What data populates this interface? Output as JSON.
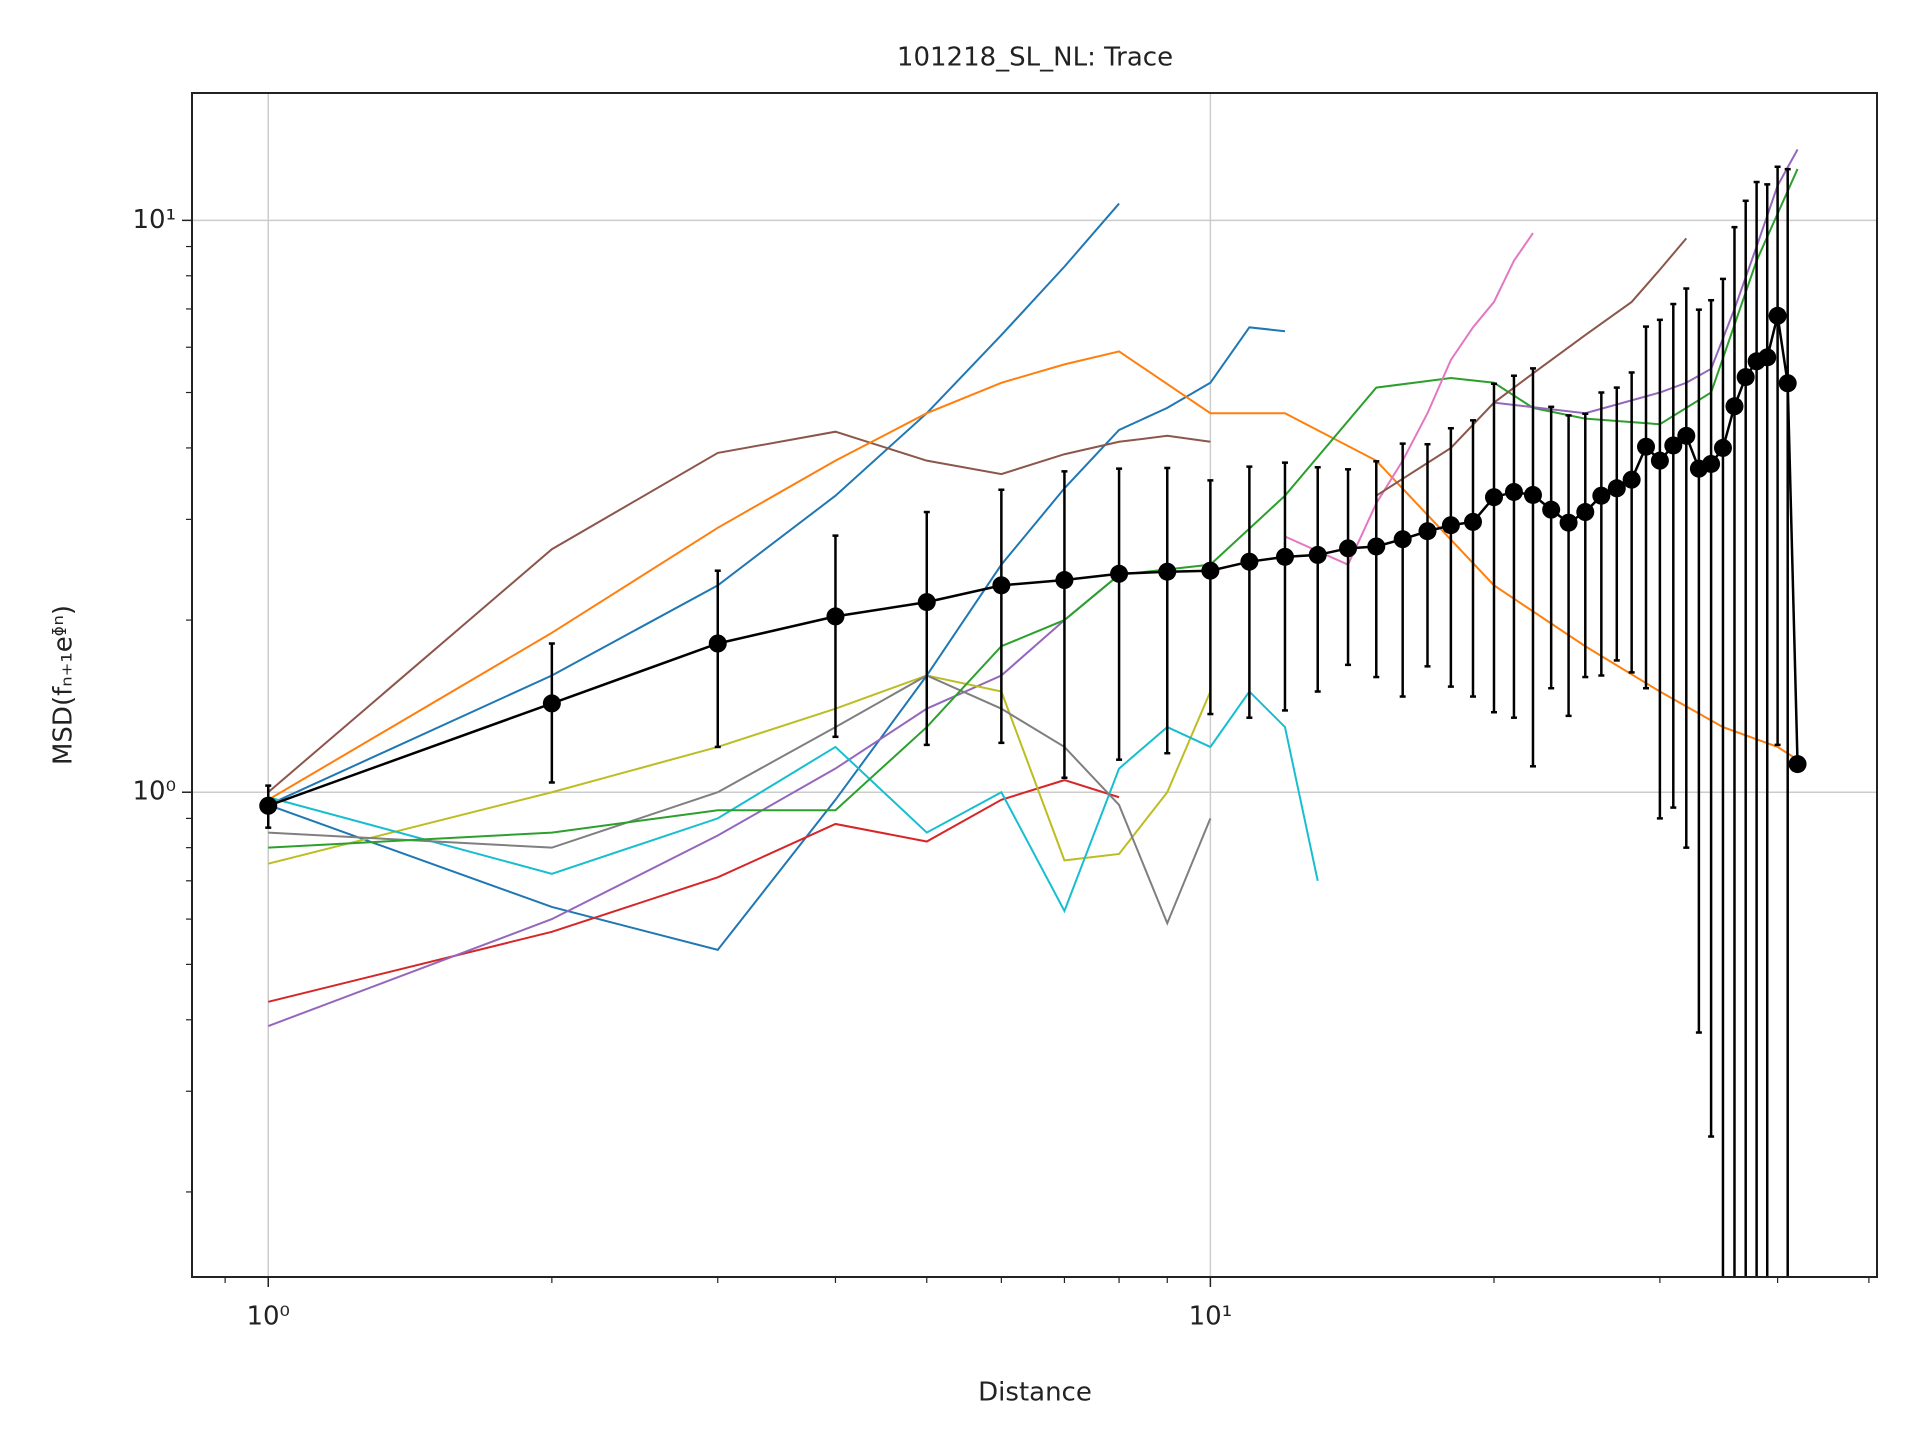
{
  "chart_data": {
    "type": "line",
    "title": "101218_SL_NL: Trace",
    "x_label": "Distance",
    "y_label": "MSD(fₙ₊₁eᶲⁿ)",
    "xscale": "log",
    "yscale": "log",
    "grid": true,
    "xlim": [
      0.83,
      51
    ],
    "ylim": [
      0.142,
      16.7
    ],
    "xticks": [
      {
        "value": 1,
        "label": "10⁰"
      },
      {
        "value": 10,
        "label": "10¹"
      }
    ],
    "yticks": [
      {
        "value": 1,
        "label": "10⁰"
      },
      {
        "value": 10,
        "label": "10¹"
      }
    ],
    "xminorticks": [
      0.9,
      2,
      3,
      4,
      5,
      6,
      7,
      8,
      9,
      20,
      30,
      40,
      50
    ],
    "yminorticks": [
      0.2,
      0.3,
      0.4,
      0.5,
      0.6,
      0.7,
      0.8,
      0.9,
      2,
      3,
      4,
      5,
      6,
      7,
      8,
      9
    ],
    "series": [
      {
        "color": "#1f77b4",
        "x": [
          1,
          2,
          3,
          4,
          5,
          6,
          7,
          8
        ],
        "values": [
          0.95,
          1.6,
          2.3,
          3.3,
          4.6,
          6.3,
          8.3,
          10.7
        ]
      },
      {
        "color": "#1f77b4",
        "x": [
          1,
          2,
          3,
          4,
          5,
          6,
          7,
          8,
          9,
          10,
          11,
          12
        ],
        "values": [
          0.95,
          0.63,
          0.53,
          0.97,
          1.6,
          2.5,
          3.4,
          4.3,
          4.7,
          5.2,
          6.5,
          6.4
        ]
      },
      {
        "color": "#d62728",
        "x": [
          1,
          2,
          3,
          4,
          5,
          6,
          7,
          8
        ],
        "values": [
          0.43,
          0.57,
          0.71,
          0.88,
          0.82,
          0.97,
          1.05,
          0.98
        ]
      },
      {
        "color": "#9467bd",
        "x": [
          1,
          2,
          3,
          4,
          5,
          6,
          7,
          8
        ],
        "values": [
          0.39,
          0.6,
          0.84,
          1.1,
          1.4,
          1.6,
          2.0,
          2.4
        ]
      },
      {
        "color": "#8c564b",
        "x": [
          1,
          2,
          3,
          4,
          5,
          6,
          7,
          8,
          9,
          10
        ],
        "values": [
          1.0,
          2.66,
          3.92,
          4.27,
          3.8,
          3.6,
          3.9,
          4.1,
          4.2,
          4.1
        ]
      },
      {
        "color": "#ff7f0e",
        "x": [
          1,
          2,
          3,
          4,
          5,
          6,
          7,
          8,
          10,
          12,
          15,
          20,
          25,
          30,
          35,
          40,
          42
        ],
        "values": [
          0.97,
          1.9,
          2.9,
          3.8,
          4.6,
          5.2,
          5.6,
          5.9,
          4.6,
          4.6,
          3.8,
          2.3,
          1.8,
          1.5,
          1.3,
          1.2,
          1.14
        ]
      },
      {
        "color": "#bcbd22",
        "x": [
          1,
          2,
          3,
          4,
          5,
          6,
          7,
          8,
          9,
          10
        ],
        "values": [
          0.75,
          1.0,
          1.2,
          1.4,
          1.6,
          1.5,
          0.76,
          0.78,
          1.0,
          1.5
        ]
      },
      {
        "color": "#17becf",
        "x": [
          1,
          2,
          3,
          4,
          5,
          6,
          7,
          8,
          9,
          10,
          11,
          12,
          13
        ],
        "values": [
          0.98,
          0.72,
          0.9,
          1.2,
          0.85,
          1.0,
          0.62,
          1.1,
          1.3,
          1.2,
          1.5,
          1.3,
          0.7
        ]
      },
      {
        "color": "#7f7f7f",
        "x": [
          1,
          2,
          3,
          4,
          5,
          6,
          7,
          8,
          9,
          10
        ],
        "values": [
          0.85,
          0.8,
          1.0,
          1.3,
          1.6,
          1.4,
          1.2,
          0.95,
          0.59,
          0.9
        ]
      },
      {
        "color": "#2ca02c",
        "x": [
          1,
          2,
          3,
          4,
          5,
          6,
          7,
          8,
          10,
          12,
          15,
          18,
          20,
          22,
          25,
          30,
          34,
          38,
          42
        ],
        "values": [
          0.8,
          0.85,
          0.93,
          0.93,
          1.3,
          1.8,
          2.0,
          2.4,
          2.5,
          3.3,
          5.1,
          5.3,
          5.2,
          4.7,
          4.5,
          4.4,
          5.0,
          8.5,
          12.3
        ]
      },
      {
        "color": "#e377c2",
        "x": [
          12,
          14,
          15,
          16,
          17,
          18,
          19,
          20,
          21,
          22
        ],
        "values": [
          2.8,
          2.5,
          3.2,
          3.8,
          4.6,
          5.7,
          6.5,
          7.2,
          8.5,
          9.5
        ]
      },
      {
        "color": "#9467bd",
        "x": [
          20,
          25,
          30,
          32,
          34,
          36,
          38,
          40,
          42
        ],
        "values": [
          4.8,
          4.6,
          5.0,
          5.2,
          5.5,
          7.0,
          9.0,
          11.5,
          13.3
        ]
      },
      {
        "color": "#8c564b",
        "x": [
          15,
          18,
          20,
          22,
          25,
          28,
          30,
          32
        ],
        "values": [
          3.3,
          4.0,
          4.8,
          5.4,
          6.3,
          7.2,
          8.2,
          9.3
        ]
      },
      {
        "color": "#000000",
        "x": [
          1,
          2,
          3,
          4,
          5,
          6,
          7,
          8,
          9,
          10,
          11,
          12,
          13,
          14,
          15,
          16,
          17,
          18,
          19,
          20,
          21,
          22,
          23,
          24,
          25,
          26,
          27,
          28,
          29,
          30,
          31,
          32,
          33,
          34,
          35,
          36,
          37,
          38,
          39,
          40,
          41,
          42
        ],
        "values": [
          0.947,
          1.43,
          1.82,
          2.03,
          2.15,
          2.3,
          2.35,
          2.41,
          2.43,
          2.44,
          2.53,
          2.58,
          2.6,
          2.67,
          2.69,
          2.77,
          2.86,
          2.93,
          2.97,
          3.28,
          3.35,
          3.31,
          3.12,
          2.96,
          3.09,
          3.3,
          3.4,
          3.52,
          4.02,
          3.8,
          4.04,
          4.2,
          3.68,
          3.75,
          4.0,
          4.73,
          5.32,
          5.67,
          5.76,
          6.81,
          5.19,
          1.12
        ],
        "errors": [
          0.08,
          0.39,
          0.62,
          0.78,
          0.94,
          1.08,
          1.29,
          1.27,
          1.26,
          1.07,
          1.18,
          1.19,
          1.1,
          1.0,
          1.1,
          1.3,
          1.2,
          1.4,
          1.5,
          1.9,
          2.0,
          2.2,
          1.6,
          1.6,
          1.5,
          1.7,
          1.7,
          1.9,
          2.5,
          2.9,
          3.1,
          3.4,
          3.3,
          3.5,
          3.9,
          5.0,
          5.5,
          6.0,
          5.8,
          5.6,
          7.1,
          null
        ],
        "markers": true
      }
    ]
  }
}
